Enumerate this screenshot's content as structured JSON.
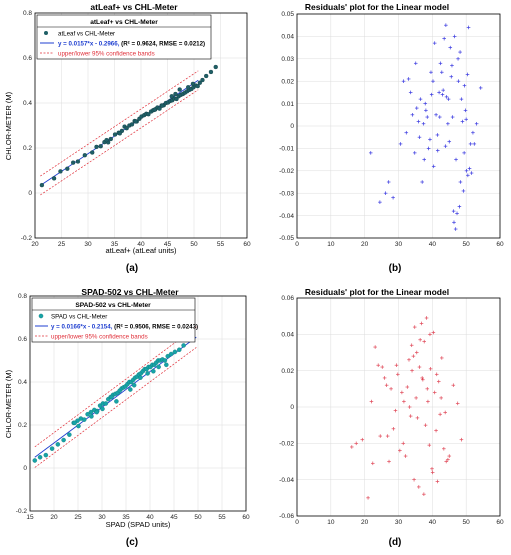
{
  "chart_data": [
    {
      "type": "scatter",
      "panel_label": "(a)",
      "title": "atLeaf+ vs CHL-Meter",
      "xlabel": "atLeaf+ (atLeaf units)",
      "ylabel": "CHLOR-METER (M)",
      "xlim": [
        20,
        60
      ],
      "ylim": [
        -0.2,
        0.8
      ],
      "xticks": [
        "20",
        "25",
        "30",
        "35",
        "40",
        "45",
        "50",
        "55",
        "60"
      ],
      "yticks": [
        "-0.2",
        "0",
        "0.2",
        "0.4",
        "0.6",
        "0.8"
      ],
      "grid": true,
      "legend_position": "top-left",
      "legend": {
        "title": "atLeaf+ vs CHL-Meter",
        "scatter_label": "atLeaf vs CHL-Meter",
        "fit_label_blue": "y = 0.0157*x - 0.2966,",
        "fit_label_rest": "(R² = 0.9624, RMSE = 0.0212)",
        "bands_label": "upper/lower 95% confidence bands"
      },
      "fit": {
        "slope": 0.0157,
        "intercept": -0.2966,
        "band": 0.042
      },
      "colors": {
        "points": "#1f5f66",
        "fit": "#1f3fd0",
        "bands": "#e0303a"
      },
      "series": [
        {
          "x": [
            21.3,
            23.6,
            24.8,
            26.1,
            27.2,
            28.1,
            29.4,
            30.8,
            31.6,
            32.4,
            33.1,
            33.8,
            34.3,
            35.1,
            35.8,
            36.4,
            36.9,
            37.3,
            37.8,
            38.3,
            38.8,
            39.2,
            39.7,
            40.1,
            40.6,
            41.0,
            41.4,
            41.9,
            42.3,
            42.7,
            43.1,
            43.5,
            43.9,
            44.3,
            44.7,
            45.1,
            45.5,
            45.9,
            46.3,
            46.7,
            47.1,
            47.5,
            47.9,
            48.3,
            48.7,
            49.1,
            49.5,
            49.9,
            50.3,
            50.7,
            51.1,
            51.6,
            52.3,
            53.2,
            54.1,
            44.0,
            45.8,
            47.3,
            48.9,
            49.8,
            46.5,
            42.6,
            39.0,
            36.0,
            33.5
          ],
          "y": [
            0.035,
            0.065,
            0.096,
            0.108,
            0.135,
            0.14,
            0.168,
            0.18,
            0.205,
            0.208,
            0.226,
            0.225,
            0.24,
            0.26,
            0.268,
            0.276,
            0.295,
            0.288,
            0.3,
            0.305,
            0.32,
            0.318,
            0.33,
            0.34,
            0.346,
            0.352,
            0.35,
            0.362,
            0.368,
            0.372,
            0.38,
            0.375,
            0.389,
            0.39,
            0.4,
            0.402,
            0.409,
            0.412,
            0.42,
            0.418,
            0.43,
            0.436,
            0.44,
            0.446,
            0.452,
            0.458,
            0.462,
            0.47,
            0.478,
            0.475,
            0.49,
            0.502,
            0.52,
            0.538,
            0.56,
            0.388,
            0.43,
            0.46,
            0.47,
            0.485,
            0.44,
            0.37,
            0.318,
            0.265,
            0.235
          ]
        }
      ]
    },
    {
      "type": "scatter",
      "panel_label": "(b)",
      "title": "Residuals' plot for the Linear model",
      "xlim": [
        0,
        60
      ],
      "ylim": [
        -0.05,
        0.05
      ],
      "xticks": [
        "0",
        "10",
        "20",
        "30",
        "40",
        "50",
        "60"
      ],
      "yticks": [
        "-0.05",
        "-0.04",
        "-0.03",
        "-0.02",
        "-0.01",
        "0",
        "0.01",
        "0.02",
        "0.03",
        "0.04",
        "0.05"
      ],
      "grid": true,
      "colors": {
        "points": "#3a3ae0"
      },
      "series": [
        {
          "x": [
            21.8,
            24.5,
            26.2,
            27.1,
            28.4,
            30.6,
            31.5,
            32.3,
            33.0,
            33.6,
            34.1,
            34.8,
            35.4,
            35.9,
            36.5,
            37.0,
            37.4,
            37.9,
            38.5,
            38.9,
            39.3,
            39.8,
            40.2,
            40.7,
            41.1,
            41.5,
            42.0,
            42.4,
            42.8,
            43.2,
            43.5,
            43.9,
            44.2,
            44.6,
            45.0,
            45.3,
            45.6,
            46.0,
            46.3,
            46.6,
            47.0,
            47.3,
            47.6,
            48.0,
            48.3,
            48.6,
            48.9,
            49.2,
            49.5,
            49.8,
            50.1,
            50.4,
            50.7,
            51.0,
            51.3,
            51.6,
            52.0,
            52.4,
            53.1,
            54.3,
            36.2,
            38.1,
            40.4,
            42.2,
            44.0,
            45.8,
            47.7,
            49.4,
            43.0,
            41.6,
            39.6,
            35.1,
            46.9,
            48.2,
            50.5,
            37.6,
            44.8,
            46.4,
            50.0
          ],
          "y": [
            -0.012,
            -0.034,
            -0.03,
            -0.025,
            -0.032,
            -0.008,
            0.02,
            -0.003,
            0.021,
            0.015,
            0.005,
            -0.012,
            0.008,
            0.002,
            0.012,
            -0.025,
            0.001,
            0.01,
            0.004,
            -0.01,
            -0.006,
            0.014,
            0.02,
            0.037,
            0.005,
            -0.004,
            0.015,
            0.028,
            0.024,
            0.016,
            0.039,
            -0.009,
            0.013,
            0.001,
            -0.007,
            0.035,
            0.022,
            0.004,
            -0.038,
            0.04,
            -0.015,
            -0.039,
            0.03,
            -0.036,
            -0.025,
            0.012,
            0.002,
            -0.029,
            0.018,
            0.007,
            -0.02,
            0.023,
            0.044,
            -0.019,
            -0.008,
            -0.021,
            -0.003,
            -0.008,
            0.001,
            0.017,
            -0.005,
            0.007,
            -0.018,
            0.004,
            0.045,
            0.027,
            0.02,
            -0.012,
            0.014,
            -0.011,
            0.024,
            0.028,
            -0.046,
            0.033,
            -0.022,
            -0.015,
            0.012,
            -0.043,
            0.003
          ]
        }
      ]
    },
    {
      "type": "scatter",
      "panel_label": "(c)",
      "title": "SPAD-502 vs CHL-Meter",
      "xlabel": "SPAD (SPAD units)",
      "ylabel": "CHLOR-METER (M)",
      "xlim": [
        15,
        60
      ],
      "ylim": [
        -0.2,
        0.8
      ],
      "xticks": [
        "15",
        "20",
        "25",
        "30",
        "35",
        "40",
        "45",
        "50",
        "55",
        "60"
      ],
      "yticks": [
        "-0.2",
        "0",
        "0.2",
        "0.4",
        "0.6",
        "0.8"
      ],
      "grid": true,
      "legend_position": "top-left",
      "legend": {
        "title": "SPAD-502 vs CHL-Meter",
        "scatter_label": "SPAD vs CHL-Meter",
        "fit_label_blue": "y = 0.0166*x - 0.2154,",
        "fit_label_rest": "(R² = 0.9506, RMSE = 0.0243)",
        "bands_label": "upper/lower 95% confidence bands"
      },
      "fit": {
        "slope": 0.0166,
        "intercept": -0.2154,
        "band": 0.048
      },
      "colors": {
        "points": "#17a3a6",
        "fit": "#1f3fd0",
        "bands": "#e0303a"
      },
      "series": [
        {
          "x": [
            16.0,
            17.1,
            18.3,
            19.6,
            20.8,
            22.0,
            23.2,
            24.1,
            24.9,
            25.6,
            26.3,
            27.0,
            27.7,
            28.4,
            29.0,
            29.6,
            30.2,
            30.8,
            31.3,
            31.8,
            32.3,
            32.8,
            33.3,
            33.7,
            34.1,
            34.5,
            34.9,
            35.3,
            35.7,
            36.1,
            36.5,
            36.9,
            37.3,
            37.7,
            38.1,
            38.5,
            38.9,
            39.3,
            39.7,
            40.1,
            40.5,
            40.9,
            41.3,
            41.7,
            42.1,
            42.6,
            43.1,
            43.7,
            44.4,
            45.2,
            46.1,
            47.0,
            25.1,
            27.8,
            30.1,
            33.0,
            35.9,
            38.0,
            40.7,
            43.4,
            36.7,
            32.0,
            28.9,
            39.5,
            41.8,
            24.3
          ],
          "y": [
            0.035,
            0.05,
            0.06,
            0.09,
            0.11,
            0.13,
            0.155,
            0.21,
            0.22,
            0.23,
            0.225,
            0.25,
            0.26,
            0.27,
            0.265,
            0.29,
            0.3,
            0.3,
            0.32,
            0.33,
            0.34,
            0.345,
            0.35,
            0.36,
            0.37,
            0.375,
            0.38,
            0.39,
            0.4,
            0.4,
            0.41,
            0.42,
            0.425,
            0.435,
            0.44,
            0.45,
            0.46,
            0.46,
            0.47,
            0.47,
            0.48,
            0.48,
            0.49,
            0.5,
            0.5,
            0.505,
            0.5,
            0.52,
            0.53,
            0.54,
            0.55,
            0.57,
            0.195,
            0.24,
            0.275,
            0.31,
            0.365,
            0.42,
            0.45,
            0.48,
            0.385,
            0.33,
            0.26,
            0.44,
            0.47,
            0.21
          ]
        }
      ]
    },
    {
      "type": "scatter",
      "panel_label": "(d)",
      "title": "Residuals' plot for the Linear model",
      "xlim": [
        0,
        60
      ],
      "ylim": [
        -0.06,
        0.06
      ],
      "xticks": [
        "0",
        "10",
        "20",
        "30",
        "40",
        "50",
        "60"
      ],
      "yticks": [
        "-0.06",
        "-0.04",
        "-0.02",
        "0",
        "0.02",
        "0.04",
        "0.06"
      ],
      "grid": true,
      "colors": {
        "points": "#e04858"
      },
      "series": [
        {
          "x": [
            16.2,
            17.5,
            19.3,
            21.0,
            22.4,
            23.1,
            24.0,
            24.6,
            25.2,
            25.9,
            26.5,
            27.2,
            27.8,
            28.5,
            29.1,
            29.8,
            30.4,
            31.0,
            31.6,
            32.1,
            32.6,
            33.1,
            33.6,
            34.0,
            34.4,
            34.8,
            35.2,
            35.6,
            36.0,
            36.4,
            36.8,
            37.2,
            37.6,
            38.0,
            38.3,
            38.7,
            39.1,
            39.5,
            39.9,
            40.3,
            40.7,
            41.1,
            41.5,
            41.9,
            42.3,
            42.8,
            43.4,
            44.1,
            45.0,
            46.2,
            47.5,
            48.6,
            29.4,
            31.4,
            33.3,
            35.4,
            37.5,
            39.3,
            41.3,
            43.8,
            36.2,
            34.6,
            38.5,
            40.1,
            42.6,
            26.8,
            44.6,
            22.0,
            37.0,
            33.9
          ],
          "y": [
            -0.022,
            -0.02,
            -0.018,
            -0.05,
            -0.031,
            0.033,
            0.023,
            -0.016,
            0.022,
            0.016,
            0.012,
            -0.03,
            0.01,
            -0.012,
            -0.002,
            0.018,
            -0.024,
            0.008,
            0.003,
            -0.027,
            0.011,
            0.026,
            -0.005,
            0.02,
            0.028,
            0.044,
            0.005,
            -0.006,
            -0.044,
            0.037,
            0.046,
            0.015,
            0.036,
            -0.01,
            0.049,
            0.003,
            -0.021,
            0.021,
            -0.034,
            0.041,
            0.008,
            -0.013,
            -0.041,
            0.014,
            -0.004,
            0.027,
            -0.023,
            -0.03,
            -0.027,
            0.012,
            0.002,
            -0.018,
            0.023,
            -0.02,
            0.0,
            0.03,
            -0.048,
            0.04,
            0.018,
            -0.003,
            0.022,
            -0.04,
            0.01,
            -0.036,
            0.005,
            -0.016,
            -0.029,
            0.003,
            0.016,
            0.034
          ]
        }
      ]
    }
  ]
}
